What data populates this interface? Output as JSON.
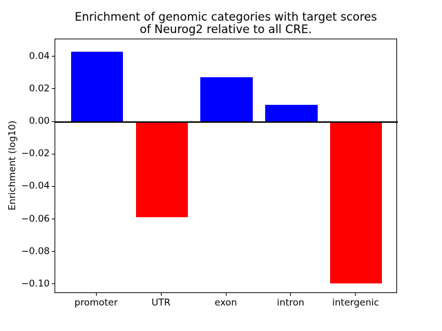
{
  "chart_data": {
    "type": "bar",
    "title": "Enrichment of genomic categories with target scores\nof Neurog2 relative to all CRE.",
    "title_lines": [
      "Enrichment of genomic categories with target scores",
      "of Neurog2 relative to all CRE."
    ],
    "xlabel": "",
    "ylabel": "Enrichment (log10)",
    "categories": [
      "promoter",
      "UTR",
      "exon",
      "intron",
      "intergenic"
    ],
    "values": [
      0.0433,
      -0.0585,
      0.0276,
      0.0107,
      -0.0993
    ],
    "bar_colors": [
      "#0000ff",
      "#ff0000",
      "#0000ff",
      "#0000ff",
      "#ff0000"
    ],
    "positive_color": "#0000ff",
    "negative_color": "#ff0000",
    "yticks": [
      0.04,
      0.02,
      0.0,
      -0.02,
      -0.04,
      -0.06,
      -0.08,
      -0.1
    ],
    "ytick_labels": [
      "0.04",
      "0.02",
      "0.00",
      "−0.02",
      "−0.04",
      "−0.06",
      "−0.08",
      "−0.10"
    ],
    "ylim": [
      -0.1056,
      0.0509
    ],
    "xlim": [
      -0.64,
      4.64
    ],
    "bar_width": 0.8,
    "grid": false,
    "legend": null,
    "zero_line": true,
    "background_color": "#ffffff",
    "spine_color": "#000000",
    "text_color": "#000000"
  }
}
